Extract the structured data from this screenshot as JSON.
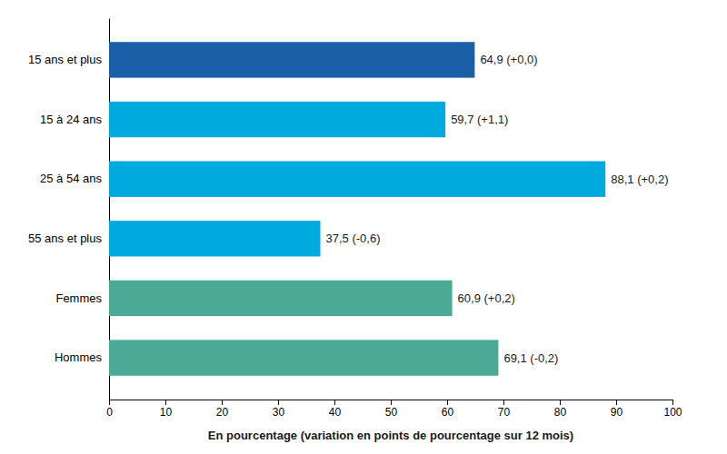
{
  "chart_data": {
    "type": "bar",
    "orientation": "horizontal",
    "categories": [
      "Hommes",
      "Femmes",
      "55 ans et plus",
      "25 à 54 ans",
      "15 à 24 ans",
      "15 ans et plus"
    ],
    "values": [
      69.1,
      60.9,
      37.5,
      88.1,
      59.7,
      64.9
    ],
    "value_labels": [
      "69,1 (-0,2)",
      "60,9 (+0,2)",
      "37,5 (-0,6)",
      "88,1 (+0,2)",
      "59,7 (+1,1)",
      "64,9 (+0,0)"
    ],
    "data_labels": true,
    "colors": [
      "#4aaa96",
      "#4aaa96",
      "#00aadf",
      "#00aadf",
      "#00aadf",
      "#1a5fa8"
    ],
    "xlabel": "En pourcentage (variation en points de pourcentage sur 12 mois)",
    "xlim": [
      0,
      100
    ],
    "xticks": [
      0,
      10,
      20,
      30,
      40,
      50,
      60,
      70,
      80,
      90,
      100
    ],
    "grid": false
  }
}
